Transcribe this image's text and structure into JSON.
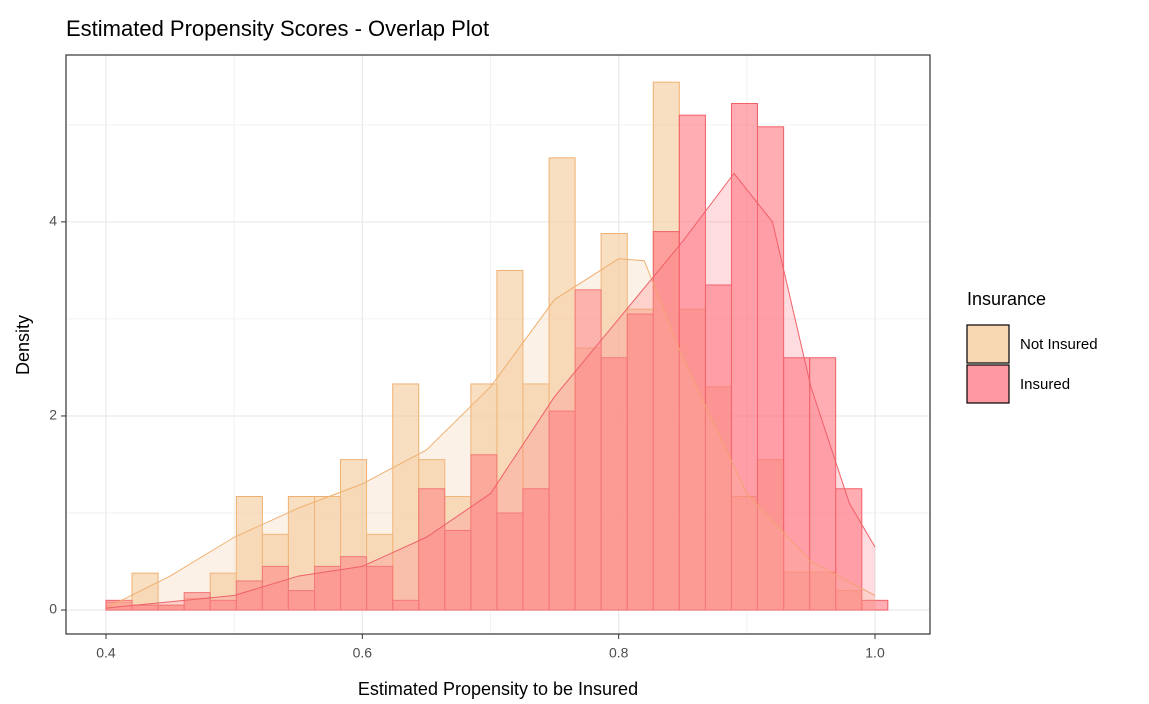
{
  "chart_data": {
    "type": "histogram",
    "title": "Estimated Propensity Scores - Overlap Plot",
    "x_label": "Estimated Propensity to be Insured",
    "y_label": "Density",
    "legend_title": "Insurance",
    "legend": "right",
    "grid": true,
    "bins": [
      0.4,
      0.4203,
      0.4407,
      0.461,
      0.4813,
      0.5017,
      0.522,
      0.5423,
      0.5627,
      0.583,
      0.6033,
      0.6237,
      0.644,
      0.6643,
      0.6847,
      0.705,
      0.7253,
      0.7457,
      0.766,
      0.7863,
      0.8067,
      0.827,
      0.8473,
      0.8677,
      0.888,
      0.9083,
      0.9287,
      0.949,
      0.9693,
      0.9897,
      1.01
    ],
    "series": [
      {
        "name": "Not Insured",
        "color": "#f5c99a",
        "edge": "#f0b070",
        "values": [
          0.08,
          0.38,
          0.05,
          0.12,
          0.38,
          1.17,
          0.78,
          1.17,
          1.17,
          1.55,
          0.78,
          2.33,
          1.55,
          1.17,
          2.33,
          3.5,
          2.33,
          4.66,
          2.7,
          3.88,
          3.1,
          5.44,
          3.1,
          2.3,
          1.17,
          1.55,
          0.39,
          0.39,
          0.2,
          0
        ],
        "density": {
          "x": [
            0.4,
            0.45,
            0.5,
            0.55,
            0.6,
            0.65,
            0.7,
            0.75,
            0.8,
            0.82,
            0.85,
            0.9,
            0.95,
            1.0
          ],
          "y": [
            0.02,
            0.35,
            0.75,
            1.05,
            1.3,
            1.65,
            2.3,
            3.2,
            3.62,
            3.6,
            2.6,
            1.2,
            0.5,
            0.15
          ]
        }
      },
      {
        "name": "Insured",
        "color": "#ff7580",
        "edge": "#f06068",
        "values": [
          0.1,
          0.05,
          0.05,
          0.18,
          0.1,
          0.3,
          0.45,
          0.2,
          0.45,
          0.55,
          0.45,
          0.1,
          1.25,
          0.82,
          1.6,
          1.0,
          1.25,
          2.05,
          3.3,
          2.6,
          3.05,
          3.9,
          5.1,
          3.35,
          5.22,
          4.98,
          2.6,
          2.6,
          1.25,
          0.1
        ],
        "density": {
          "x": [
            0.4,
            0.5,
            0.55,
            0.6,
            0.65,
            0.7,
            0.75,
            0.8,
            0.85,
            0.89,
            0.92,
            0.95,
            0.98,
            1.0
          ],
          "y": [
            0.02,
            0.15,
            0.35,
            0.45,
            0.75,
            1.2,
            2.2,
            3.0,
            3.8,
            4.5,
            4.0,
            2.3,
            1.1,
            0.65
          ]
        }
      }
    ],
    "xlim": [
      0.3688,
      1.0429
    ],
    "ylim": [
      -0.247,
      5.72
    ],
    "xticks": [
      0.4,
      0.6,
      0.8,
      {
        "value": 1.0,
        "label": "1.0"
      }
    ],
    "yticks": [
      0,
      2,
      4
    ],
    "minor_xticks": [
      0.5,
      0.7,
      0.9
    ],
    "minor_yticks": [
      1,
      3,
      5
    ]
  }
}
